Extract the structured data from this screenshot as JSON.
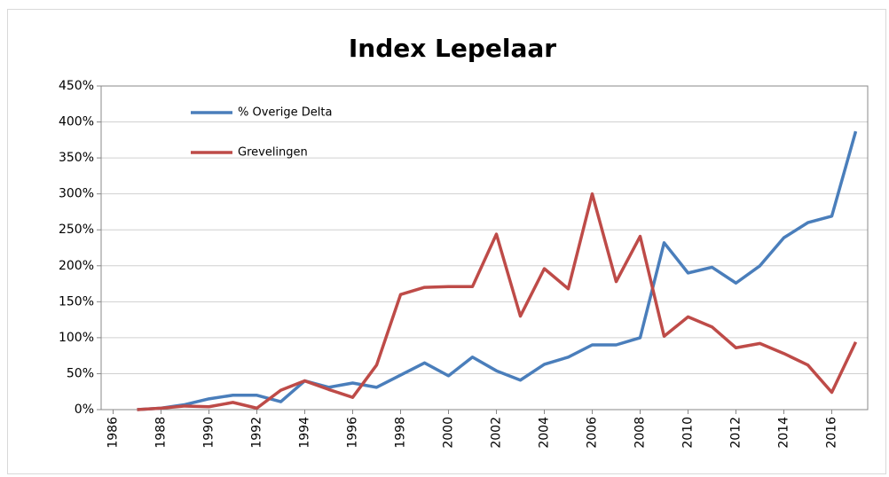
{
  "chart_data": {
    "type": "line",
    "title": "Index Lepelaar",
    "x": [
      1987,
      1988,
      1989,
      1990,
      1991,
      1992,
      1993,
      1994,
      1995,
      1996,
      1997,
      1998,
      1999,
      2000,
      2001,
      2002,
      2003,
      2004,
      2005,
      2006,
      2007,
      2008,
      2009,
      2010,
      2011,
      2012,
      2013,
      2014,
      2015,
      2016,
      2017
    ],
    "series": [
      {
        "name": "% Overige Delta",
        "color": "#4a7ebb",
        "values": [
          0,
          2,
          7,
          15,
          20,
          20,
          11,
          40,
          31,
          37,
          31,
          48,
          65,
          47,
          73,
          54,
          41,
          63,
          73,
          90,
          90,
          100,
          232,
          190,
          198,
          176,
          200,
          239,
          260,
          269,
          387
        ]
      },
      {
        "name": "Grevelingen",
        "color": "#be4b48",
        "values": [
          0,
          2,
          5,
          4,
          10,
          2,
          27,
          40,
          28,
          17,
          62,
          160,
          170,
          171,
          171,
          244,
          130,
          196,
          168,
          300,
          178,
          241,
          102,
          129,
          115,
          86,
          92,
          78,
          62,
          24,
          94
        ]
      }
    ],
    "xlim": [
      1985.5,
      2017.5
    ],
    "xticks": [
      1986,
      1988,
      1990,
      1992,
      1994,
      1996,
      1998,
      2000,
      2002,
      2004,
      2006,
      2008,
      2010,
      2012,
      2014,
      2016
    ],
    "ylim": [
      0,
      450
    ],
    "yticks": [
      {
        "value": 0,
        "label": "0%"
      },
      {
        "value": 50,
        "label": "50%"
      },
      {
        "value": 100,
        "label": "100%"
      },
      {
        "value": 150,
        "label": "150%"
      },
      {
        "value": 200,
        "label": "200%"
      },
      {
        "value": 250,
        "label": "250%"
      },
      {
        "value": 300,
        "label": "300%"
      },
      {
        "value": 350,
        "label": "350%"
      },
      {
        "value": 400,
        "label": "400%"
      },
      {
        "value": 450,
        "label": "450%"
      }
    ],
    "grid": true,
    "legend": "top-left"
  }
}
